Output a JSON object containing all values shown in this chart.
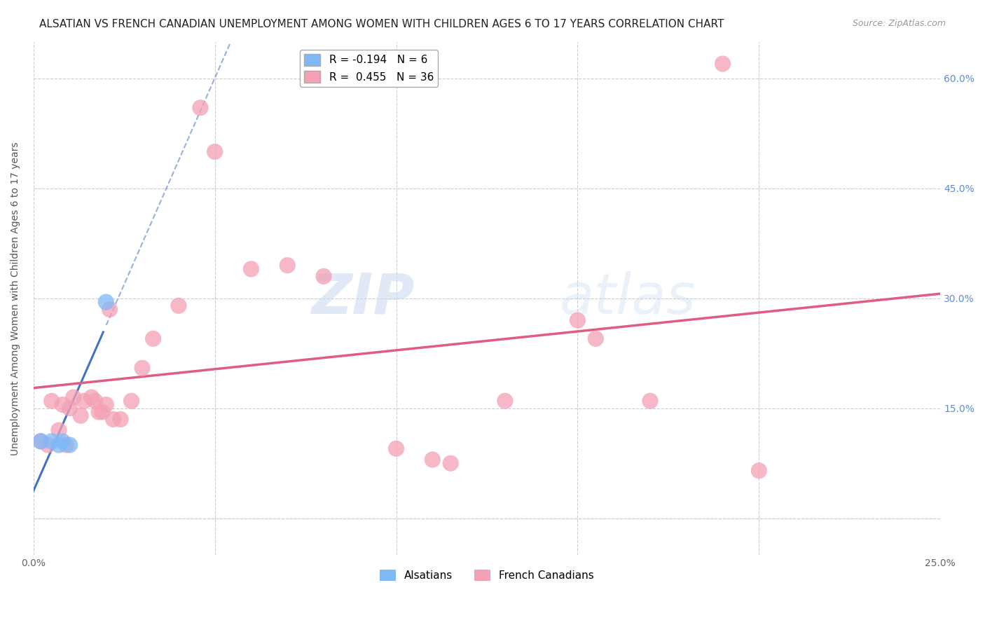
{
  "title": "ALSATIAN VS FRENCH CANADIAN UNEMPLOYMENT AMONG WOMEN WITH CHILDREN AGES 6 TO 17 YEARS CORRELATION CHART",
  "source": "Source: ZipAtlas.com",
  "xlabel": "",
  "ylabel": "Unemployment Among Women with Children Ages 6 to 17 years",
  "xlim": [
    0.0,
    0.25
  ],
  "ylim": [
    -0.05,
    0.65
  ],
  "xticks": [
    0.0,
    0.05,
    0.1,
    0.15,
    0.2,
    0.25
  ],
  "xticklabels_show": [
    "0.0%",
    "25.0%"
  ],
  "yticks": [
    0.0,
    0.15,
    0.3,
    0.45,
    0.6
  ],
  "yticklabels": [
    "",
    "15.0%",
    "30.0%",
    "45.0%",
    "60.0%"
  ],
  "alsatian_R": -0.194,
  "alsatian_N": 6,
  "french_R": 0.455,
  "french_N": 36,
  "alsatian_color": "#7eb8f7",
  "french_color": "#f4a0b5",
  "alsatian_line_color": "#4472c4",
  "french_line_color": "#e05c80",
  "alsatian_x": [
    0.002,
    0.005,
    0.007,
    0.008,
    0.01,
    0.02
  ],
  "alsatian_y": [
    0.105,
    0.105,
    0.1,
    0.105,
    0.1,
    0.295
  ],
  "french_x": [
    0.002,
    0.004,
    0.005,
    0.007,
    0.008,
    0.009,
    0.01,
    0.011,
    0.013,
    0.014,
    0.016,
    0.017,
    0.018,
    0.019,
    0.02,
    0.021,
    0.022,
    0.024,
    0.027,
    0.03,
    0.033,
    0.04,
    0.046,
    0.05,
    0.06,
    0.07,
    0.08,
    0.1,
    0.11,
    0.115,
    0.13,
    0.15,
    0.155,
    0.17,
    0.19,
    0.2
  ],
  "french_y": [
    0.105,
    0.1,
    0.16,
    0.12,
    0.155,
    0.1,
    0.15,
    0.165,
    0.14,
    0.16,
    0.165,
    0.16,
    0.145,
    0.145,
    0.155,
    0.285,
    0.135,
    0.135,
    0.16,
    0.205,
    0.245,
    0.29,
    0.56,
    0.5,
    0.34,
    0.345,
    0.33,
    0.095,
    0.08,
    0.075,
    0.16,
    0.27,
    0.245,
    0.16,
    0.62,
    0.065
  ],
  "watermark_zip": "ZIP",
  "watermark_atlas": "atlas",
  "background_color": "#ffffff",
  "grid_color": "#cccccc",
  "title_fontsize": 11,
  "axis_label_fontsize": 10,
  "tick_fontsize": 10,
  "legend_fontsize": 11,
  "right_ytick_color": "#5b8dd9"
}
